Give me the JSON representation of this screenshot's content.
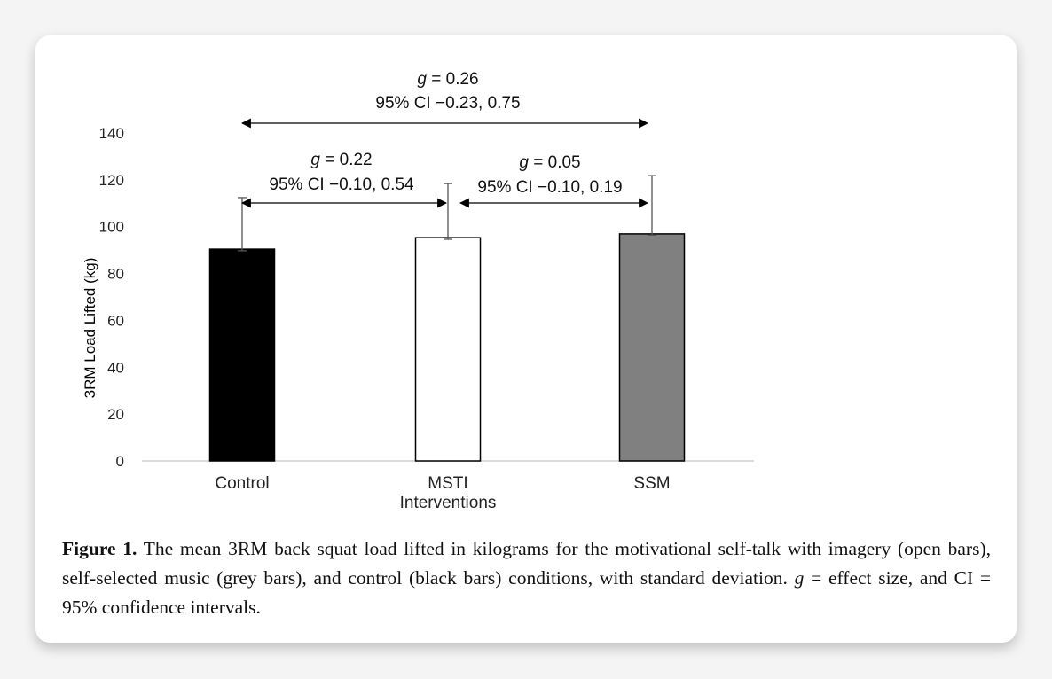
{
  "chart_data": {
    "type": "bar",
    "categories": [
      "Control",
      "MSTI",
      "SSM"
    ],
    "values": [
      90.4,
      95.3,
      96.9
    ],
    "error_upper": [
      112.4,
      118.4,
      121.8
    ],
    "error_lower": [
      89.7,
      94.6,
      96.4
    ],
    "bar_colors": [
      "#000000",
      "#ffffff",
      "#808080"
    ],
    "xlabel": "Interventions",
    "ylabel": "3RM Load Lifted (kg)",
    "ylim": [
      0,
      140
    ],
    "yticks": [
      "0",
      "20",
      "40",
      "60",
      "80",
      "100",
      "120",
      "140"
    ],
    "grid": false,
    "annotations": [
      {
        "from": "Control",
        "to": "SSM",
        "g_symbol": "g",
        "g_text": " = 0.26",
        "ci": "95% CI −0.23, 0.75"
      },
      {
        "from": "Control",
        "to": "MSTI",
        "g_symbol": "g",
        "g_text": " = 0.22",
        "ci": "95% CI −0.10, 0.54"
      },
      {
        "from": "MSTI",
        "to": "SSM",
        "g_symbol": "g",
        "g_text": " = 0.05",
        "ci": "95% CI −0.10, 0.19"
      }
    ]
  },
  "caption": {
    "label": "Figure 1.",
    "text1": " The mean 3RM back squat load lifted in kilograms for the motivational self-talk with imagery (open bars), self-selected music (grey bars), and control (black bars) conditions, with standard deviation. ",
    "g": "g",
    "text2": " = effect size, and CI = 95% confidence intervals."
  }
}
